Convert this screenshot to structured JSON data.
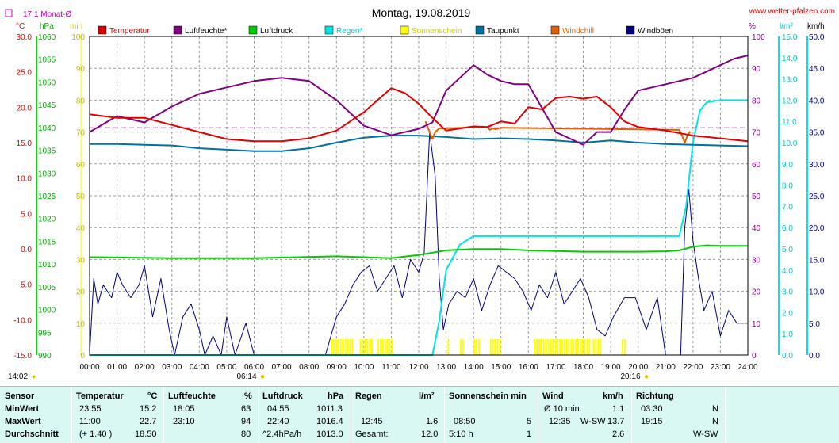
{
  "header": {
    "title": "Montag, 19.08.2019",
    "site": "www.wetter-pfalzen.com",
    "month_avg": "17.1 Monat-Ø",
    "sunrise": "06:14",
    "sunset": "20:16",
    "current_time": "14:02"
  },
  "units": {
    "left1": "°C",
    "left2": "hPa",
    "left3": "min",
    "right1": "%",
    "right2": "l/m²",
    "right3": "km/h"
  },
  "colors": {
    "temperatur": "#e00000",
    "luftfeuchte": "#800080",
    "luftdruck": "#00cc00",
    "regen": "#00e5e5",
    "sonnenschein": "#ffff00",
    "taupunkt": "#0070a0",
    "windchill": "#e06000",
    "windboeen": "#000080",
    "monthavg": "#c000c0"
  },
  "legend": [
    {
      "label": "Temperatur",
      "color": "#e00000"
    },
    {
      "label": "Luftfeuchte*",
      "color": "#800080"
    },
    {
      "label": "Luftdruck",
      "color": "#00cc00"
    },
    {
      "label": "Regen*",
      "color": "#00e5e5"
    },
    {
      "label": "Sonnenschein",
      "color": "#ffff00"
    },
    {
      "label": "Taupunkt",
      "color": "#0070a0"
    },
    {
      "label": "Windchill",
      "color": "#e06000"
    },
    {
      "label": "Windböen",
      "color": "#000080"
    }
  ],
  "chart_data": {
    "type": "line",
    "title": "Montag, 19.08.2019",
    "x_ticks": [
      "00:00",
      "01:00",
      "02:00",
      "03:00",
      "04:00",
      "05:00",
      "06:00",
      "07:00",
      "08:00",
      "09:00",
      "10:00",
      "11:00",
      "12:00",
      "13:00",
      "14:00",
      "15:00",
      "16:00",
      "17:00",
      "18:00",
      "19:00",
      "20:00",
      "21:00",
      "22:00",
      "23:00",
      "24:00"
    ],
    "y_axes": {
      "temperature_c": {
        "ticks": [
          "30.0",
          "25.0",
          "20.0",
          "15.0",
          "10.0",
          "5.0",
          "0.0",
          "-5.0",
          "-10.0",
          "-15.0"
        ],
        "range": [
          -15,
          30
        ]
      },
      "pressure_hpa": {
        "ticks": [
          "1060",
          "1055",
          "1050",
          "1045",
          "1040",
          "1035",
          "1030",
          "1025",
          "1020",
          "1015",
          "1010",
          "1005",
          "1000",
          "995",
          "990"
        ],
        "range": [
          990,
          1060
        ]
      },
      "sunshine_min": {
        "ticks": [
          "100",
          "90",
          "80",
          "70",
          "60",
          "50",
          "40",
          "30",
          "20",
          "10",
          "0"
        ],
        "range": [
          0,
          100
        ]
      },
      "humidity_pct": {
        "ticks": [
          "100",
          "90",
          "80",
          "70",
          "60",
          "50",
          "40",
          "30",
          "20",
          "10",
          "0"
        ],
        "range": [
          0,
          100
        ]
      },
      "rain_lm2": {
        "ticks": [
          "15.0",
          "14.0",
          "13.0",
          "12.0",
          "11.0",
          "10.0",
          "9.0",
          "8.0",
          "7.0",
          "6.0",
          "5.0",
          "4.0",
          "3.0",
          "2.0",
          "1.0",
          "0.0"
        ],
        "range": [
          0,
          15
        ]
      },
      "wind_kmh": {
        "ticks": [
          "50.0",
          "45.0",
          "40.0",
          "35.0",
          "30.0",
          "25.0",
          "20.0",
          "15.0",
          "10.0",
          "5.0",
          "0.0"
        ],
        "range": [
          0,
          50
        ]
      }
    },
    "month_avg_temp": 17.1,
    "series": [
      {
        "name": "Temperatur",
        "axis": "temperature_c",
        "x": [
          0,
          1,
          2,
          3,
          4,
          5,
          6,
          7,
          8,
          9,
          10,
          11,
          11.5,
          12,
          12.5,
          13,
          14,
          14.5,
          15,
          15.5,
          16,
          16.5,
          17,
          17.5,
          18,
          18.5,
          19,
          19.5,
          20,
          21,
          22,
          23,
          24
        ],
        "y": [
          19.0,
          18.5,
          18.5,
          17.5,
          16.5,
          15.5,
          15.2,
          15.2,
          15.6,
          16.7,
          19.3,
          22.7,
          22.0,
          20.5,
          18.5,
          16.7,
          17.3,
          17.2,
          18.0,
          17.7,
          20.0,
          19.7,
          21.3,
          21.5,
          21.2,
          21.5,
          20.0,
          18.0,
          17.2,
          16.7,
          16.0,
          15.6,
          15.2
        ]
      },
      {
        "name": "Luftfeuchte*",
        "axis": "humidity_pct",
        "x": [
          0,
          1,
          2,
          3,
          4,
          5,
          6,
          7,
          8,
          9,
          10,
          11,
          12,
          12.5,
          13,
          14,
          14.5,
          15,
          15.5,
          16,
          17,
          18,
          18.5,
          19,
          19.5,
          20,
          21,
          22,
          23,
          23.5,
          24
        ],
        "y": [
          70,
          75,
          73,
          78,
          82,
          84,
          86,
          87,
          86,
          80,
          72,
          69,
          71,
          73,
          83,
          91,
          88,
          86,
          85,
          85,
          70,
          66,
          70,
          70,
          77,
          83,
          85,
          87,
          91,
          93,
          94
        ]
      },
      {
        "name": "Luftdruck",
        "axis": "pressure_hpa",
        "x": [
          0,
          3,
          6,
          9,
          11,
          12,
          13,
          14,
          15,
          16,
          18,
          19,
          20,
          21,
          21.5,
          22,
          22.5,
          23,
          24
        ],
        "y": [
          1011.5,
          1011.3,
          1011.3,
          1011.7,
          1011.3,
          1012.0,
          1013.0,
          1013.3,
          1013.3,
          1013.0,
          1012.7,
          1012.7,
          1012.7,
          1012.8,
          1013.0,
          1013.8,
          1014.1,
          1014.0,
          1014.0
        ]
      },
      {
        "name": "Regen*",
        "axis": "rain_lm2",
        "x": [
          0,
          12.5,
          12.75,
          13,
          13.5,
          14,
          16,
          18,
          21.5,
          21.75,
          22,
          22.25,
          22.5,
          23,
          24
        ],
        "y": [
          0,
          0,
          1.6,
          4.0,
          5.2,
          5.6,
          5.6,
          5.6,
          5.6,
          7.0,
          10.0,
          11.5,
          11.9,
          12.0,
          12.0
        ]
      },
      {
        "name": "Taupunkt",
        "axis": "temperature_c",
        "x": [
          0,
          1,
          2,
          3,
          4,
          5,
          6,
          7,
          8,
          9,
          10,
          11,
          12,
          13,
          14,
          15,
          16,
          17,
          18,
          19,
          20,
          21,
          22,
          23,
          24
        ],
        "y": [
          14.8,
          14.8,
          14.7,
          14.6,
          14.2,
          14.0,
          13.8,
          13.8,
          14.2,
          15.0,
          15.7,
          16.0,
          16.0,
          15.8,
          15.5,
          15.6,
          15.5,
          15.3,
          15.0,
          15.3,
          15.0,
          14.8,
          14.7,
          14.6,
          14.5
        ]
      },
      {
        "name": "Windchill",
        "axis": "temperature_c",
        "x": [
          12.25,
          12.4,
          12.5,
          12.6,
          12.75,
          14.5,
          14.6,
          14.7,
          14.8,
          15.0,
          21.5,
          21.6,
          21.7,
          21.8,
          21.9
        ],
        "y": [
          18.0,
          16.5,
          15.5,
          16.5,
          17.0,
          17.2,
          16.8,
          17.0,
          16.9,
          17.1,
          16.8,
          16.0,
          15.0,
          16.0,
          16.6
        ]
      },
      {
        "name": "Windböen",
        "axis": "wind_kmh",
        "x": [
          0,
          0.15,
          0.3,
          0.5,
          0.8,
          1.0,
          1.2,
          1.5,
          1.8,
          2.0,
          2.3,
          2.6,
          2.9,
          3.1,
          3.4,
          3.7,
          4.0,
          4.2,
          4.5,
          4.8,
          5.0,
          5.3,
          5.7,
          6.0,
          6.4,
          7,
          8,
          8.6,
          9.0,
          9.3,
          9.6,
          9.9,
          10.2,
          10.5,
          10.8,
          11.1,
          11.4,
          11.7,
          12.0,
          12.2,
          12.4,
          12.6,
          12.75,
          12.9,
          13.1,
          13.4,
          13.7,
          14.0,
          14.3,
          14.6,
          14.9,
          15.2,
          15.5,
          15.8,
          16.1,
          16.4,
          16.7,
          17.0,
          17.3,
          17.6,
          17.9,
          18.2,
          18.5,
          18.8,
          19.1,
          19.5,
          19.9,
          20.3,
          20.7,
          21.0,
          21.3,
          21.55,
          21.7,
          21.85,
          22.0,
          22.2,
          22.4,
          22.7,
          23.0,
          23.3,
          23.6,
          24
        ],
        "y": [
          0,
          12,
          8,
          11,
          9,
          13,
          11,
          9,
          11,
          14,
          6,
          12,
          4,
          0,
          6,
          8,
          4,
          0,
          3,
          0,
          6,
          0,
          5,
          0,
          0,
          0,
          0,
          0,
          6,
          8,
          11,
          13,
          14,
          10,
          12,
          14,
          9,
          15,
          13,
          16,
          35,
          28,
          12,
          4,
          8,
          10,
          9,
          12,
          7,
          11,
          14,
          13,
          12,
          10,
          7,
          11,
          9,
          13,
          8,
          10,
          12,
          9,
          4,
          3,
          6,
          9,
          9,
          4,
          9,
          0,
          0,
          0,
          20,
          26,
          18,
          12,
          7,
          10,
          3,
          7,
          5,
          5
        ]
      }
    ],
    "sunshine": {
      "axis": "sunshine_min",
      "hour_ranges": [
        [
          8.8,
          9.6
        ],
        [
          9.85,
          10.3
        ],
        [
          10.5,
          11.0
        ],
        [
          13.05,
          13.1
        ],
        [
          13.5,
          13.6
        ],
        [
          14.0,
          14.2
        ],
        [
          14.6,
          15.0
        ],
        [
          16.2,
          18.25
        ],
        [
          18.35,
          18.6
        ],
        [
          19.4,
          19.5
        ]
      ],
      "value": 5
    }
  },
  "stats": {
    "headers": {
      "sensor": "Sensor",
      "temp": "Temperatur",
      "temp_unit": "°C",
      "hum": "Luftfeuchte",
      "hum_unit": "%",
      "press": "Luftdruck",
      "press_unit": "hPa",
      "rain": "Regen",
      "rain_unit": "l/m²",
      "sun": "Sonnenschein min",
      "wind": "Wind",
      "wind_unit": "km/h",
      "dir": "Richtung"
    },
    "min": {
      "label": "MinWert",
      "temp_time": "23:55",
      "temp_val": "15.2",
      "hum_time": "18:05",
      "hum_val": "63",
      "press_time": "04:55",
      "press_val": "1011.3",
      "wind_label": "Ø 10 min.",
      "wind_val": "1.1",
      "dir_time": "03:30",
      "dir_val": "N"
    },
    "max": {
      "label": "MaxWert",
      "temp_time": "11:00",
      "temp_val": "22.7",
      "hum_time": "23:10",
      "hum_val": "94",
      "press_time": "22:40",
      "press_val": "1016.4",
      "rain_time": "12:45",
      "rain_val": "1.6",
      "sun_time": "08:50",
      "sun_val": "5",
      "wind_time": "12:35",
      "wind_dir": "W-SW",
      "wind_val": "13.7",
      "dir_time": "19:15",
      "dir_val": "N"
    },
    "avg": {
      "label": "Durchschnitt",
      "temp_dev": "(+ 1.40 )",
      "temp_val": "18.50",
      "hum_val": "80",
      "press_trend": "^2.4hPa/h",
      "press_val": "1013.0",
      "rain_label": "Gesamt:",
      "rain_val": "12.0",
      "sun_time": "5:10 h",
      "sun_val": "1",
      "wind_val": "2.6",
      "dir_val": "W-SW"
    }
  }
}
